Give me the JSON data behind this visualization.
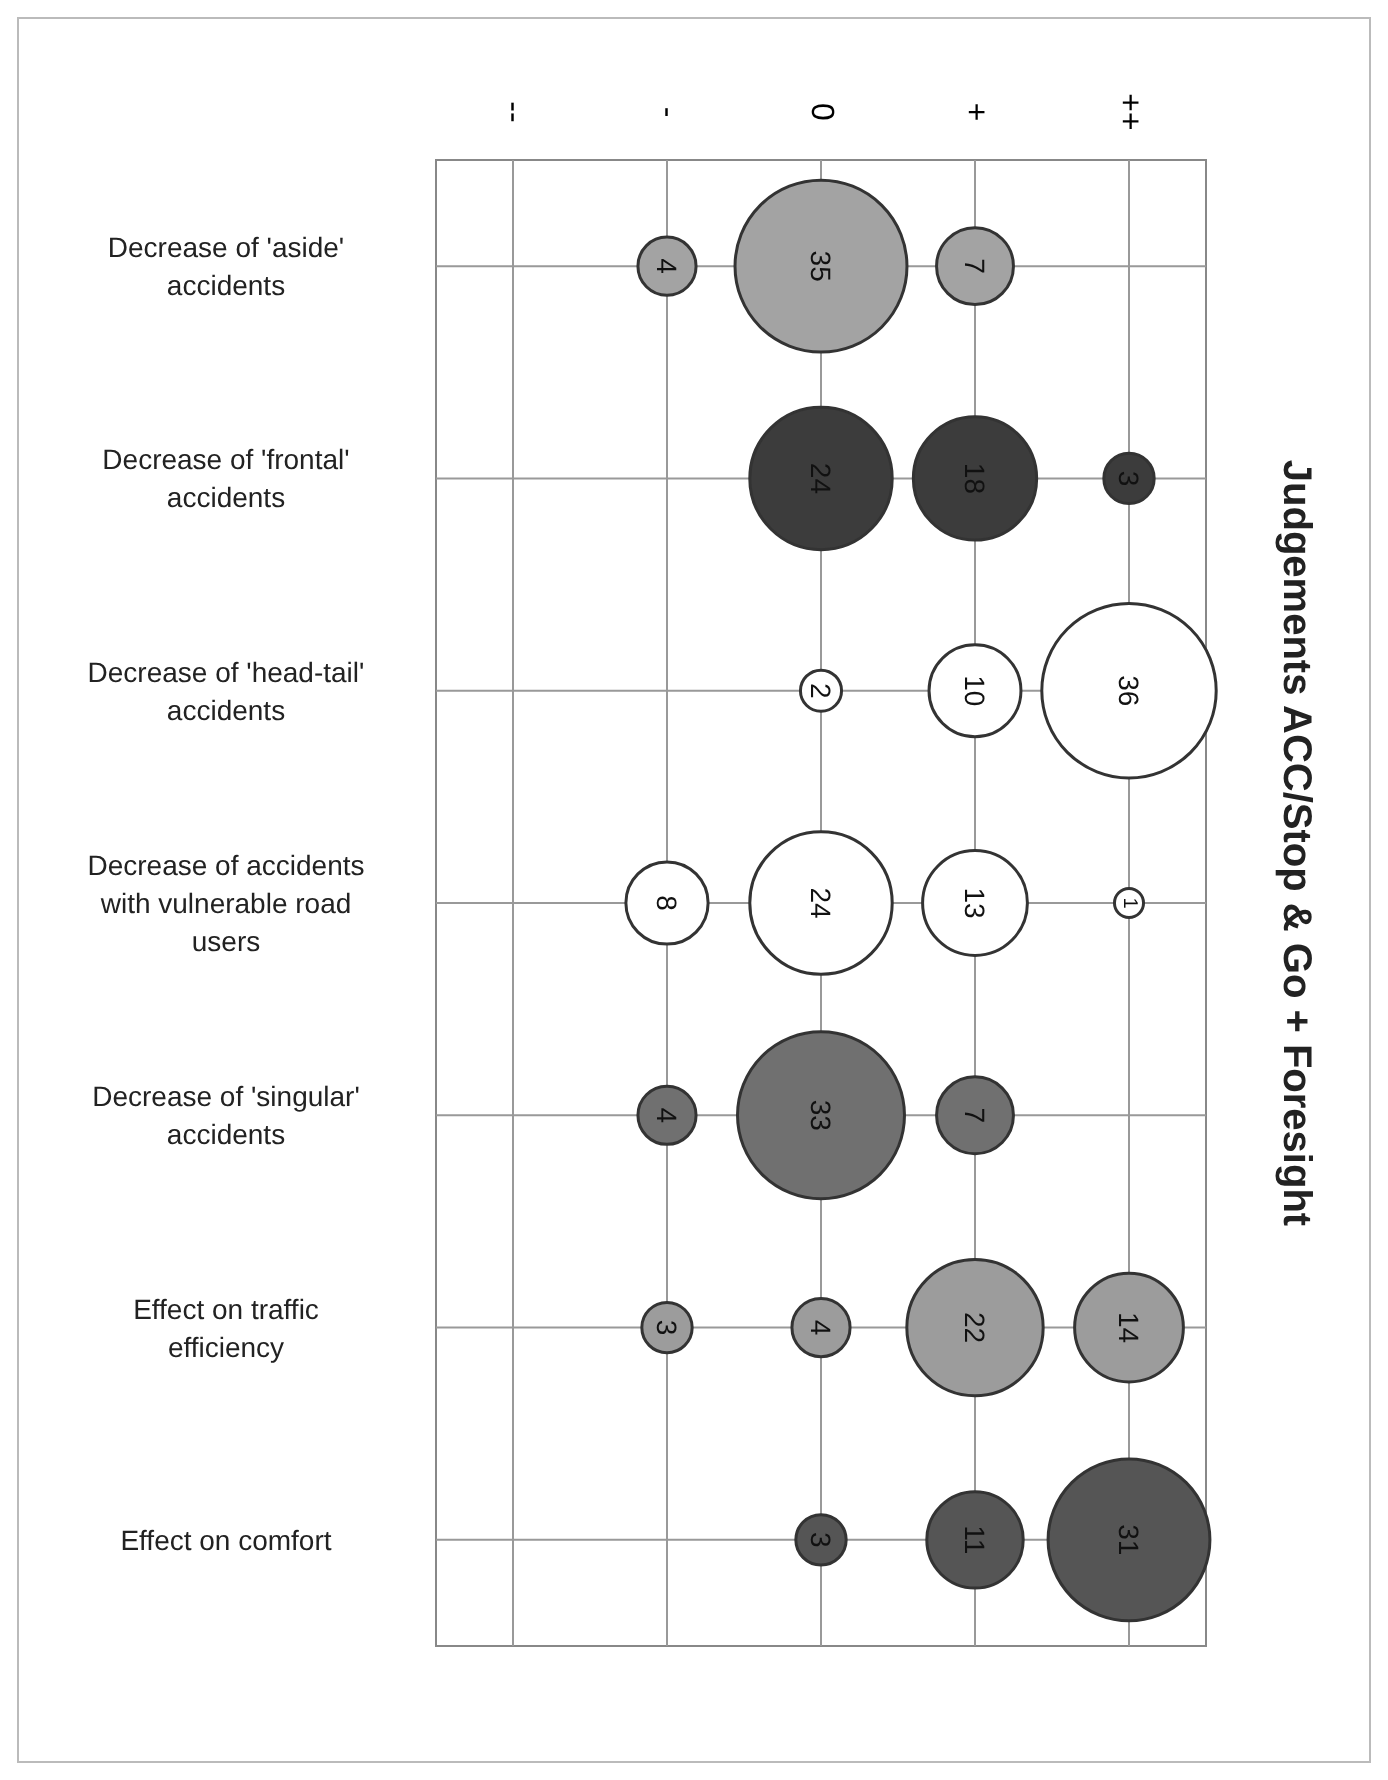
{
  "chart_data": {
    "type": "heatmap",
    "title": "Judgements ACC/Stop & Go + Foresight",
    "categories": [
      "--",
      "-",
      "0",
      "+",
      "++"
    ],
    "y_categories": [
      "Decrease of 'aside' accidents",
      "Decrease of 'frontal' accidents",
      "Decrease of 'head-tail' accidents",
      "Decrease of accidents with vulnerable road users",
      "Decrease of 'singular' accidents",
      "Effect on traffic efficiency",
      "Effect on comfort"
    ],
    "cells": [
      [
        null,
        4,
        35,
        7,
        null
      ],
      [
        null,
        null,
        24,
        18,
        3
      ],
      [
        null,
        null,
        2,
        10,
        36
      ],
      [
        null,
        8,
        24,
        13,
        1
      ],
      [
        null,
        4,
        33,
        7,
        null
      ],
      [
        null,
        3,
        4,
        22,
        14
      ],
      [
        null,
        null,
        3,
        11,
        31
      ]
    ],
    "colors": [
      "#a3a3a3",
      "#3c3c3c",
      "#ffffff",
      "#ffffff",
      "#707070",
      "#9c9c9c",
      "#555555"
    ],
    "grid": true,
    "data_labels": true
  }
}
